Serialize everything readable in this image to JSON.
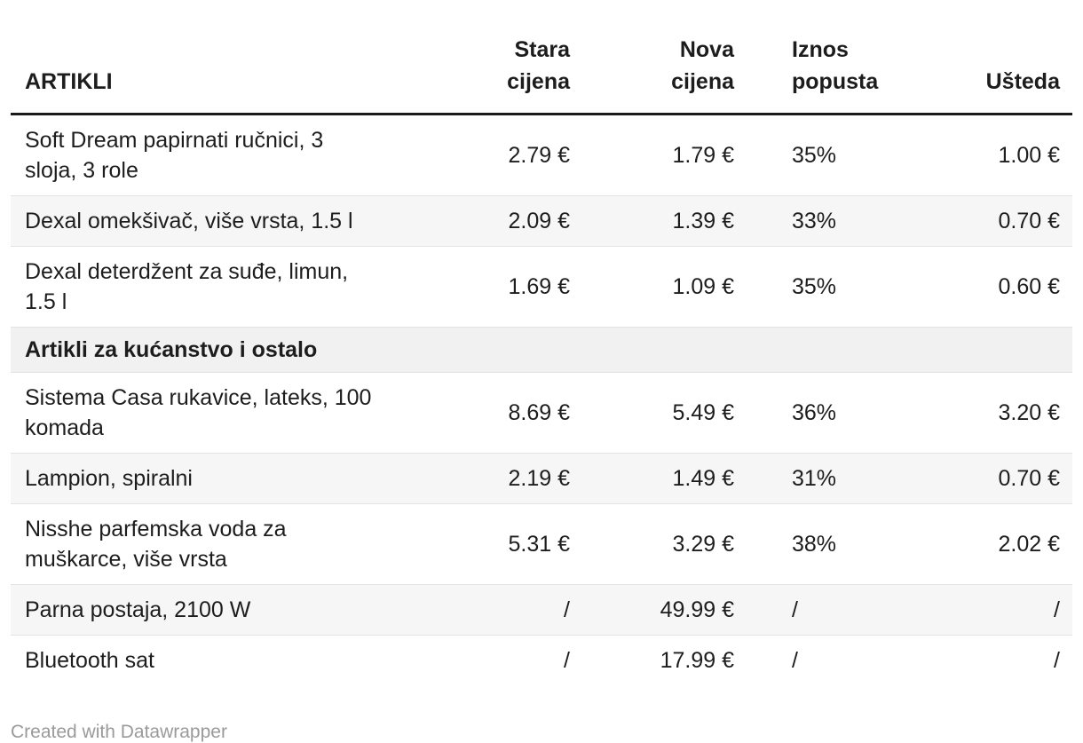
{
  "table": {
    "columns": [
      {
        "label": "ARTIKLI",
        "align": "left"
      },
      {
        "label": "Stara\ncijena",
        "align": "right"
      },
      {
        "label": "Nova\ncijena",
        "align": "right"
      },
      {
        "label": "Iznos\npopusta",
        "align": "left"
      },
      {
        "label": "Ušteda",
        "align": "right"
      }
    ],
    "rows": [
      {
        "type": "item",
        "name": "Soft Dream papirnati ručnici, 3 sloja, 3 role",
        "old_price": "2.79 €",
        "new_price": "1.79 €",
        "discount": "35%",
        "savings": "1.00 €"
      },
      {
        "type": "item",
        "name": "Dexal omekšivač, više vrsta, 1.5 l",
        "old_price": "2.09 €",
        "new_price": "1.39 €",
        "discount": "33%",
        "savings": "0.70 €"
      },
      {
        "type": "item",
        "name": "Dexal deterdžent za suđe, limun, 1.5 l",
        "old_price": "1.69 €",
        "new_price": "1.09 €",
        "discount": "35%",
        "savings": "0.60 €"
      },
      {
        "type": "section",
        "name": "Artikli za kućanstvo i ostalo"
      },
      {
        "type": "item",
        "name": "Sistema Casa rukavice, lateks, 100 komada",
        "old_price": "8.69 €",
        "new_price": "5.49 €",
        "discount": "36%",
        "savings": "3.20 €"
      },
      {
        "type": "item",
        "name": "Lampion, spiralni",
        "old_price": "2.19 €",
        "new_price": "1.49 €",
        "discount": "31%",
        "savings": "0.70 €"
      },
      {
        "type": "item",
        "name": "Nisshe parfemska voda za muškarce, više vrsta",
        "old_price": "5.31 €",
        "new_price": "3.29 €",
        "discount": "38%",
        "savings": "2.02 €"
      },
      {
        "type": "item",
        "name": "Parna postaja, 2100 W",
        "old_price": "/",
        "new_price": "49.99 €",
        "discount": "/",
        "savings": "/"
      },
      {
        "type": "item",
        "name": "Bluetooth sat",
        "old_price": "/",
        "new_price": "17.99 €",
        "discount": "/",
        "savings": "/"
      }
    ]
  },
  "footer": {
    "attribution": "Created with Datawrapper"
  },
  "theme": {
    "text_color": "#1d1d1d",
    "zebra_row_color": "#f6f6f6",
    "section_row_color": "#f1f1f1",
    "row_divider_color": "#e3e3e3",
    "header_rule_color": "#1a1a1a",
    "attribution_color": "#9a9a9a",
    "background_color": "#ffffff"
  }
}
